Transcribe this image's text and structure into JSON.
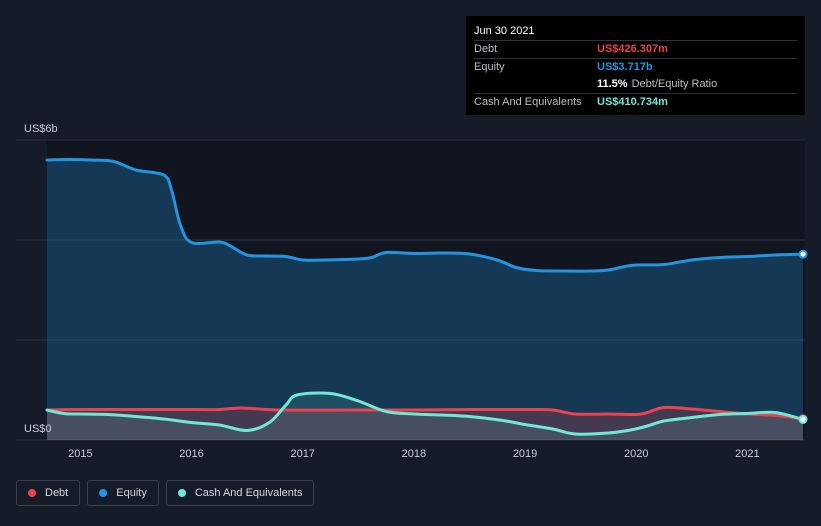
{
  "colors": {
    "debt": "#e8434f",
    "equity": "#2394df",
    "cash": "#71e7d6",
    "grid": "#2c333f",
    "background": "#151b27"
  },
  "tooltip": {
    "date": "Jun 30 2021",
    "debt_label": "Debt",
    "debt_value": "US$426.307m",
    "equity_label": "Equity",
    "equity_value": "US$3.717b",
    "ratio_pct": "11.5%",
    "ratio_label": "Debt/Equity Ratio",
    "cash_label": "Cash And Equivalents",
    "cash_value": "US$410.734m"
  },
  "legend": {
    "debt": "Debt",
    "equity": "Equity",
    "cash": "Cash And Equivalents"
  },
  "chart_data": {
    "type": "area",
    "y_top_label": "US$6b",
    "y_bottom_label": "US$0",
    "ylim": [
      0,
      6
    ],
    "y_unit": "US$ billions",
    "grid": true,
    "legend_position": "bottom-left",
    "xlim": [
      2014.7,
      2021.5
    ],
    "x_ticks": [
      "2015",
      "2016",
      "2017",
      "2018",
      "2019",
      "2020",
      "2021"
    ],
    "series": [
      {
        "name": "Equity",
        "key": "equity",
        "points": [
          [
            2014.7,
            5.6
          ],
          [
            2014.9,
            5.61
          ],
          [
            2015.1,
            5.6
          ],
          [
            2015.3,
            5.57
          ],
          [
            2015.5,
            5.4
          ],
          [
            2015.75,
            5.3
          ],
          [
            2015.82,
            5.0
          ],
          [
            2015.9,
            4.3
          ],
          [
            2016.0,
            3.95
          ],
          [
            2016.25,
            3.96
          ],
          [
            2016.35,
            3.88
          ],
          [
            2016.5,
            3.7
          ],
          [
            2016.7,
            3.68
          ],
          [
            2016.85,
            3.67
          ],
          [
            2017.0,
            3.6
          ],
          [
            2017.2,
            3.6
          ],
          [
            2017.5,
            3.62
          ],
          [
            2017.62,
            3.65
          ],
          [
            2017.75,
            3.75
          ],
          [
            2018.0,
            3.73
          ],
          [
            2018.25,
            3.74
          ],
          [
            2018.5,
            3.72
          ],
          [
            2018.75,
            3.6
          ],
          [
            2018.92,
            3.45
          ],
          [
            2019.1,
            3.39
          ],
          [
            2019.35,
            3.38
          ],
          [
            2019.6,
            3.38
          ],
          [
            2019.75,
            3.4
          ],
          [
            2019.9,
            3.47
          ],
          [
            2020.0,
            3.5
          ],
          [
            2020.25,
            3.51
          ],
          [
            2020.5,
            3.6
          ],
          [
            2020.75,
            3.65
          ],
          [
            2021.0,
            3.67
          ],
          [
            2021.25,
            3.7
          ],
          [
            2021.5,
            3.717
          ]
        ]
      },
      {
        "name": "Debt",
        "key": "debt",
        "points": [
          [
            2014.7,
            0.6
          ],
          [
            2015.0,
            0.61
          ],
          [
            2015.5,
            0.61
          ],
          [
            2016.0,
            0.61
          ],
          [
            2016.25,
            0.61
          ],
          [
            2016.45,
            0.64
          ],
          [
            2016.8,
            0.6
          ],
          [
            2017.5,
            0.6
          ],
          [
            2018.0,
            0.6
          ],
          [
            2018.5,
            0.61
          ],
          [
            2019.0,
            0.61
          ],
          [
            2019.25,
            0.6
          ],
          [
            2019.45,
            0.52
          ],
          [
            2019.75,
            0.52
          ],
          [
            2020.0,
            0.51
          ],
          [
            2020.1,
            0.55
          ],
          [
            2020.25,
            0.65
          ],
          [
            2020.5,
            0.62
          ],
          [
            2020.75,
            0.57
          ],
          [
            2021.0,
            0.52
          ],
          [
            2021.25,
            0.49
          ],
          [
            2021.5,
            0.426
          ]
        ]
      },
      {
        "name": "Cash And Equivalents",
        "key": "cash",
        "points": [
          [
            2014.7,
            0.6
          ],
          [
            2014.85,
            0.53
          ],
          [
            2015.0,
            0.52
          ],
          [
            2015.25,
            0.51
          ],
          [
            2015.5,
            0.47
          ],
          [
            2015.75,
            0.42
          ],
          [
            2016.0,
            0.35
          ],
          [
            2016.25,
            0.3
          ],
          [
            2016.5,
            0.19
          ],
          [
            2016.7,
            0.35
          ],
          [
            2016.85,
            0.7
          ],
          [
            2016.95,
            0.9
          ],
          [
            2017.25,
            0.93
          ],
          [
            2017.5,
            0.78
          ],
          [
            2017.75,
            0.57
          ],
          [
            2018.0,
            0.52
          ],
          [
            2018.25,
            0.5
          ],
          [
            2018.5,
            0.47
          ],
          [
            2018.8,
            0.39
          ],
          [
            2019.0,
            0.31
          ],
          [
            2019.25,
            0.22
          ],
          [
            2019.45,
            0.12
          ],
          [
            2019.75,
            0.14
          ],
          [
            2019.95,
            0.2
          ],
          [
            2020.1,
            0.28
          ],
          [
            2020.25,
            0.38
          ],
          [
            2020.5,
            0.45
          ],
          [
            2020.75,
            0.51
          ],
          [
            2021.0,
            0.53
          ],
          [
            2021.25,
            0.55
          ],
          [
            2021.5,
            0.411
          ]
        ]
      }
    ],
    "highlight_x": 2021.5
  }
}
